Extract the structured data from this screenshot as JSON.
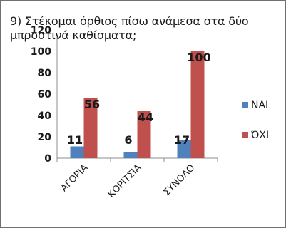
{
  "chart_data": {
    "type": "bar",
    "title": "9) Στέκομαι όρθιος πίσω ανάμεσα στα δύο μπροστινά καθίσματα;",
    "categories": [
      "ΑΓΟΡΙΑ",
      "ΚΟΡΙΤΣΙΑ",
      "ΣΥΝΟΛΟ"
    ],
    "series": [
      {
        "name": "ΝΑΙ",
        "values": [
          11,
          6,
          17
        ],
        "color": "#4f81bd"
      },
      {
        "name": "ΌΧΙ",
        "values": [
          56,
          44,
          100
        ],
        "color": "#c0504d"
      }
    ],
    "ylim": [
      0,
      120
    ],
    "yticks": [
      0,
      20,
      40,
      60,
      80,
      100,
      120
    ],
    "xlabel": "",
    "ylabel": "",
    "grid": false,
    "legend_position": "right",
    "data_labels": true
  }
}
